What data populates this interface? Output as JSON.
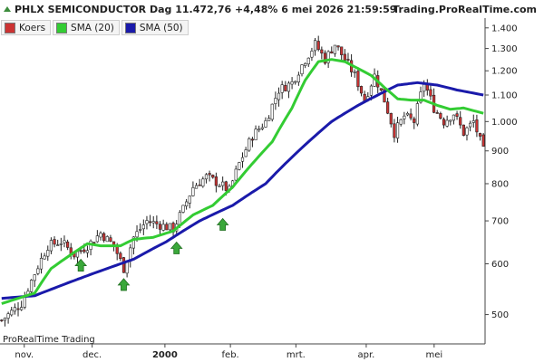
{
  "header": {
    "title": "PHLX SEMICONDUCTOR Dag 11.472,76 +4,48% 6 mei 2026 21:59:59",
    "brand": "Trading.ProRealTime.com"
  },
  "legend": [
    {
      "label": "Koers",
      "color": "#cc3333"
    },
    {
      "label": "SMA (20)",
      "color": "#33cc33"
    },
    {
      "label": "SMA (50)",
      "color": "#1a1aaa"
    }
  ],
  "watermark": "ProRealTime Trading",
  "chart_data": {
    "type": "candlestick",
    "y_scale": "log",
    "ylim": [
      450,
      1450
    ],
    "y_ticks": [
      {
        "value": 1400,
        "label": "1.400"
      },
      {
        "value": 1300,
        "label": "1.300"
      },
      {
        "value": 1200,
        "label": "1.200"
      },
      {
        "value": 1100,
        "label": "1.100"
      },
      {
        "value": 1000,
        "label": "1.000"
      },
      {
        "value": 900,
        "label": "900"
      },
      {
        "value": 800,
        "label": "800"
      },
      {
        "value": 700,
        "label": "700"
      },
      {
        "value": 600,
        "label": "600"
      },
      {
        "value": 500,
        "label": "500"
      }
    ],
    "x_ticks": [
      {
        "label": "nov.",
        "bold": false,
        "t": 0.05
      },
      {
        "label": "dec.",
        "bold": false,
        "t": 0.19
      },
      {
        "label": "2000",
        "bold": true,
        "t": 0.34
      },
      {
        "label": "feb.",
        "bold": false,
        "t": 0.475
      },
      {
        "label": "mrt.",
        "bold": false,
        "t": 0.61
      },
      {
        "label": "apr.",
        "bold": false,
        "t": 0.755
      },
      {
        "label": "mei",
        "bold": false,
        "t": 0.895
      }
    ],
    "price_keypoints": [
      [
        0,
        490
      ],
      [
        6,
        520
      ],
      [
        10,
        580
      ],
      [
        14,
        640
      ],
      [
        18,
        650
      ],
      [
        22,
        620
      ],
      [
        26,
        640
      ],
      [
        30,
        670
      ],
      [
        34,
        640
      ],
      [
        37,
        590
      ],
      [
        40,
        660
      ],
      [
        44,
        700
      ],
      [
        48,
        690
      ],
      [
        52,
        680
      ],
      [
        55,
        730
      ],
      [
        58,
        790
      ],
      [
        62,
        820
      ],
      [
        66,
        800
      ],
      [
        69,
        780
      ],
      [
        72,
        860
      ],
      [
        76,
        950
      ],
      [
        80,
        1000
      ],
      [
        84,
        1120
      ],
      [
        88,
        1150
      ],
      [
        92,
        1250
      ],
      [
        95,
        1320
      ],
      [
        98,
        1250
      ],
      [
        101,
        1320
      ],
      [
        104,
        1250
      ],
      [
        107,
        1180
      ],
      [
        110,
        1080
      ],
      [
        113,
        1180
      ],
      [
        116,
        1080
      ],
      [
        119,
        960
      ],
      [
        122,
        1020
      ],
      [
        125,
        1000
      ],
      [
        128,
        1150
      ],
      [
        131,
        1050
      ],
      [
        134,
        1000
      ],
      [
        137,
        1030
      ],
      [
        140,
        960
      ],
      [
        143,
        1000
      ],
      [
        146,
        900
      ]
    ],
    "sma20_keypoints": [
      [
        0,
        520
      ],
      [
        10,
        540
      ],
      [
        15,
        590
      ],
      [
        22,
        625
      ],
      [
        26,
        645
      ],
      [
        30,
        640
      ],
      [
        36,
        640
      ],
      [
        40,
        655
      ],
      [
        46,
        660
      ],
      [
        52,
        675
      ],
      [
        58,
        715
      ],
      [
        64,
        740
      ],
      [
        70,
        790
      ],
      [
        76,
        860
      ],
      [
        82,
        930
      ],
      [
        88,
        1050
      ],
      [
        92,
        1160
      ],
      [
        96,
        1240
      ],
      [
        100,
        1250
      ],
      [
        104,
        1240
      ],
      [
        108,
        1210
      ],
      [
        112,
        1180
      ],
      [
        116,
        1130
      ],
      [
        120,
        1085
      ],
      [
        124,
        1080
      ],
      [
        128,
        1080
      ],
      [
        132,
        1060
      ],
      [
        136,
        1045
      ],
      [
        140,
        1050
      ],
      [
        146,
        1030
      ]
    ],
    "sma50_keypoints": [
      [
        0,
        530
      ],
      [
        10,
        535
      ],
      [
        20,
        560
      ],
      [
        30,
        585
      ],
      [
        40,
        610
      ],
      [
        50,
        650
      ],
      [
        60,
        700
      ],
      [
        70,
        740
      ],
      [
        80,
        800
      ],
      [
        90,
        900
      ],
      [
        100,
        1000
      ],
      [
        108,
        1060
      ],
      [
        114,
        1100
      ],
      [
        120,
        1140
      ],
      [
        126,
        1150
      ],
      [
        132,
        1140
      ],
      [
        138,
        1120
      ],
      [
        146,
        1100
      ]
    ],
    "signals": [
      {
        "index": 24,
        "price": 596,
        "direction": "up"
      },
      {
        "index": 37,
        "price": 556,
        "direction": "up"
      },
      {
        "index": 53,
        "price": 634,
        "direction": "up"
      },
      {
        "index": 67,
        "price": 690,
        "direction": "up"
      }
    ],
    "n_bars": 147
  }
}
